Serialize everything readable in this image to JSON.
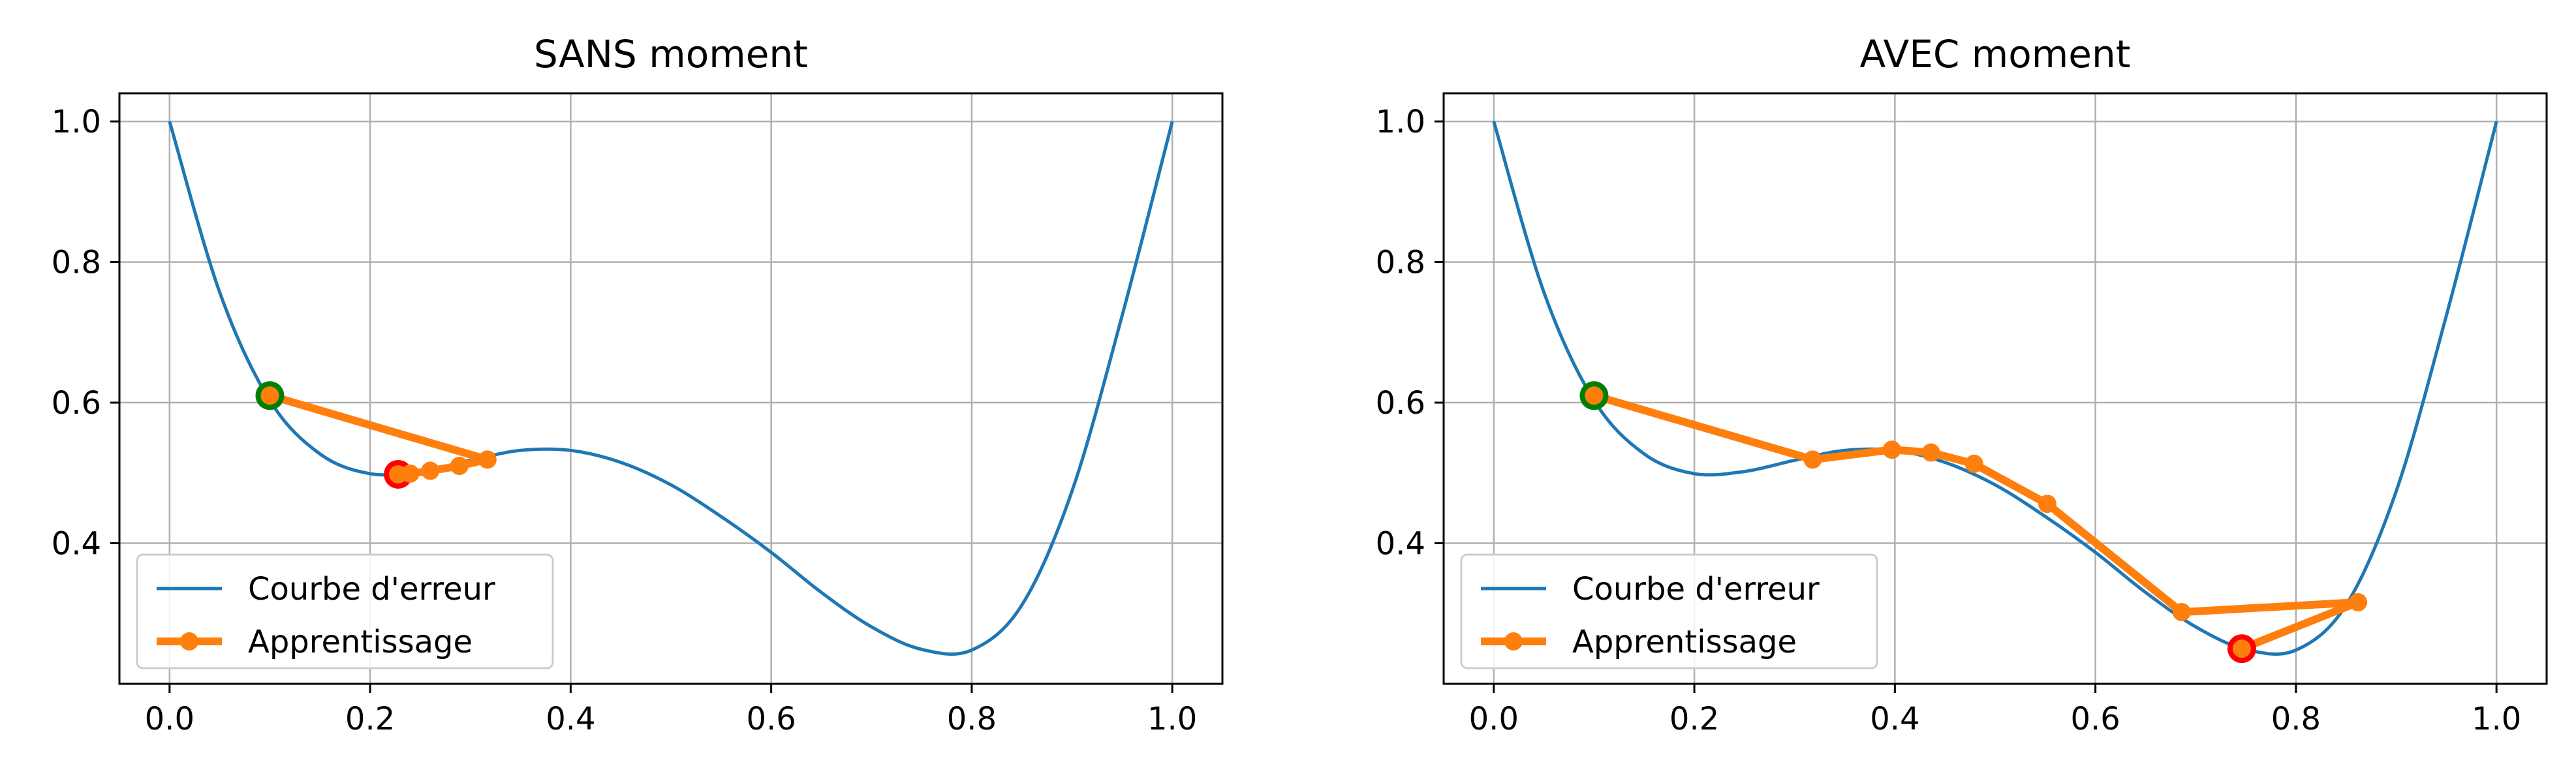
{
  "chart_data": [
    {
      "type": "line",
      "title": "SANS moment",
      "xlabel": "",
      "ylabel": "",
      "xlim": [
        -0.05,
        1.05
      ],
      "ylim": [
        0.2,
        1.04
      ],
      "xticks": [
        0.0,
        0.2,
        0.4,
        0.6,
        0.8,
        1.0
      ],
      "xtick_labels": [
        "0.0",
        "0.2",
        "0.4",
        "0.6",
        "0.8",
        "1.0"
      ],
      "yticks": [
        0.4,
        0.6,
        0.8,
        1.0
      ],
      "ytick_labels": [
        "0.4",
        "0.6",
        "0.8",
        "1.0"
      ],
      "grid": true,
      "legend_position": "lower-left",
      "series": [
        {
          "name": "Courbe d'erreur",
          "color": "#1f77b4",
          "kind": "curve",
          "x": [
            0.0,
            0.05,
            0.1,
            0.15,
            0.2,
            0.25,
            0.3,
            0.35,
            0.4,
            0.45,
            0.5,
            0.55,
            0.6,
            0.65,
            0.7,
            0.75,
            0.8,
            0.85,
            0.9,
            0.95,
            1.0
          ],
          "y": [
            1.0,
            0.757,
            0.603,
            0.527,
            0.499,
            0.502,
            0.518,
            0.532,
            0.532,
            0.515,
            0.483,
            0.438,
            0.387,
            0.33,
            0.281,
            0.249,
            0.248,
            0.312,
            0.474,
            0.724,
            1.0
          ]
        },
        {
          "name": "Apprentissage",
          "color": "#ff7f0e",
          "kind": "path",
          "x": [
            0.1,
            0.317,
            0.289,
            0.26,
            0.24,
            0.228
          ],
          "y": [
            0.61,
            0.519,
            0.51,
            0.503,
            0.499,
            0.498
          ]
        }
      ],
      "start_point": {
        "x": 0.1,
        "y": 0.61,
        "color": "#008000"
      },
      "end_point": {
        "x": 0.228,
        "y": 0.498,
        "color": "#ff0000"
      }
    },
    {
      "type": "line",
      "title": "AVEC moment",
      "xlabel": "",
      "ylabel": "",
      "xlim": [
        -0.05,
        1.05
      ],
      "ylim": [
        0.2,
        1.04
      ],
      "xticks": [
        0.0,
        0.2,
        0.4,
        0.6,
        0.8,
        1.0
      ],
      "xtick_labels": [
        "0.0",
        "0.2",
        "0.4",
        "0.6",
        "0.8",
        "1.0"
      ],
      "yticks": [
        0.4,
        0.6,
        0.8,
        1.0
      ],
      "ytick_labels": [
        "0.4",
        "0.6",
        "0.8",
        "1.0"
      ],
      "grid": true,
      "legend_position": "lower-left",
      "series": [
        {
          "name": "Courbe d'erreur",
          "color": "#1f77b4",
          "kind": "curve",
          "x": [
            0.0,
            0.05,
            0.1,
            0.15,
            0.2,
            0.25,
            0.3,
            0.35,
            0.4,
            0.45,
            0.5,
            0.55,
            0.6,
            0.65,
            0.7,
            0.75,
            0.8,
            0.85,
            0.9,
            0.95,
            1.0
          ],
          "y": [
            1.0,
            0.757,
            0.603,
            0.527,
            0.499,
            0.502,
            0.518,
            0.532,
            0.532,
            0.515,
            0.483,
            0.438,
            0.387,
            0.33,
            0.281,
            0.249,
            0.248,
            0.312,
            0.474,
            0.724,
            1.0
          ]
        },
        {
          "name": "Apprentissage",
          "color": "#ff7f0e",
          "kind": "path",
          "x": [
            0.1,
            0.318,
            0.397,
            0.436,
            0.479,
            0.552,
            0.686,
            0.862,
            0.746
          ],
          "y": [
            0.61,
            0.519,
            0.533,
            0.529,
            0.513,
            0.456,
            0.302,
            0.316,
            0.25
          ]
        }
      ],
      "start_point": {
        "x": 0.1,
        "y": 0.61,
        "color": "#008000"
      },
      "end_point": {
        "x": 0.746,
        "y": 0.25,
        "color": "#ff0000"
      }
    }
  ]
}
